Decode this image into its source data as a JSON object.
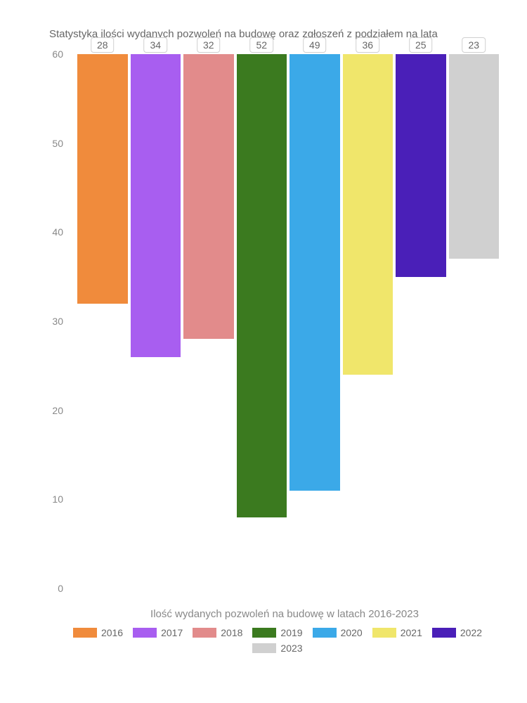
{
  "chart": {
    "type": "bar",
    "title": "Statystyka ilości wydanych pozwoleń na budowę oraz zgłoszeń z podziałem na lata",
    "title_fontsize": 15,
    "title_color": "#666666",
    "x_caption": "Ilość wydanych pozwoleń na budowę w latach 2016-2023",
    "x_caption_color": "#888888",
    "background_color": "#ffffff",
    "ylim": [
      0,
      60
    ],
    "ytick_step": 10,
    "yticks": [
      "0",
      "10",
      "20",
      "30",
      "40",
      "50",
      "60"
    ],
    "ytick_color": "#888888",
    "ytick_fontsize": 14,
    "label_fontsize": 14,
    "label_color": "#666666",
    "label_bg": "#ffffff",
    "label_border": "#d0d0d0",
    "bar_gap": 4,
    "categories": [
      "2016",
      "2017",
      "2018",
      "2019",
      "2020",
      "2021",
      "2022",
      "2023"
    ],
    "values": [
      28,
      34,
      32,
      52,
      49,
      36,
      25,
      23
    ],
    "bar_colors": [
      "#f08b3c",
      "#a85ef0",
      "#e28b8b",
      "#3b7a1f",
      "#3ba9e8",
      "#f0e66b",
      "#4a1fb8",
      "#d0d0d0"
    ]
  },
  "legend": {
    "items": [
      {
        "label": "2016",
        "color": "#f08b3c"
      },
      {
        "label": "2017",
        "color": "#a85ef0"
      },
      {
        "label": "2018",
        "color": "#e28b8b"
      },
      {
        "label": "2019",
        "color": "#3b7a1f"
      },
      {
        "label": "2020",
        "color": "#3ba9e8"
      },
      {
        "label": "2021",
        "color": "#f0e66b"
      },
      {
        "label": "2022",
        "color": "#4a1fb8"
      },
      {
        "label": "2023",
        "color": "#d0d0d0"
      }
    ],
    "swatch_width": 34,
    "swatch_height": 14,
    "fontsize": 14,
    "color": "#666666"
  }
}
